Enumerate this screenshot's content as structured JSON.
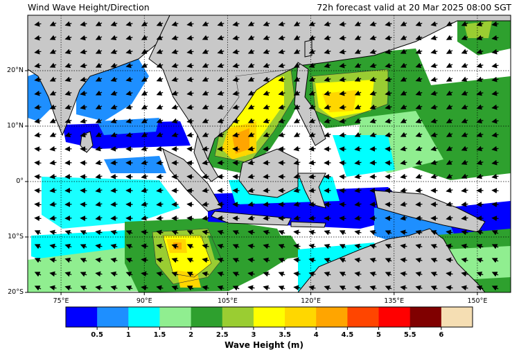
{
  "header": {
    "title": "Wind Wave Height/Direction",
    "valid_time": "72h forecast valid at 20 Mar 2025 08:00 SGT"
  },
  "axes": {
    "lon_ticks": [
      "75°E",
      "90°E",
      "105°E",
      "120°E",
      "135°E",
      "150°E"
    ],
    "lon_values": [
      75,
      90,
      105,
      120,
      135,
      150
    ],
    "lat_ticks": [
      "20°N",
      "10°N",
      "0°",
      "10°S",
      "20°S"
    ],
    "lat_values": [
      20,
      10,
      0,
      -10,
      -20
    ],
    "lon_range": [
      69,
      156
    ],
    "lat_range": [
      -20,
      30
    ]
  },
  "colorbar": {
    "title": "Wave Height (m)",
    "tick_labels": [
      "0.5",
      "1",
      "1.5",
      "2",
      "2.5",
      "3",
      "3.5",
      "4",
      "4.5",
      "5",
      "5.5",
      "6"
    ],
    "colors": [
      "#0000ff",
      "#1e8fff",
      "#00ffff",
      "#90ee90",
      "#2ea02e",
      "#9acd32",
      "#ffff00",
      "#ffd700",
      "#ffa500",
      "#ff4500",
      "#ff0000",
      "#800000",
      "#f5deb3"
    ]
  },
  "colors": {
    "land": "#c8c8c8",
    "sea_calm": "#ffffff",
    "grid": "#000000"
  }
}
